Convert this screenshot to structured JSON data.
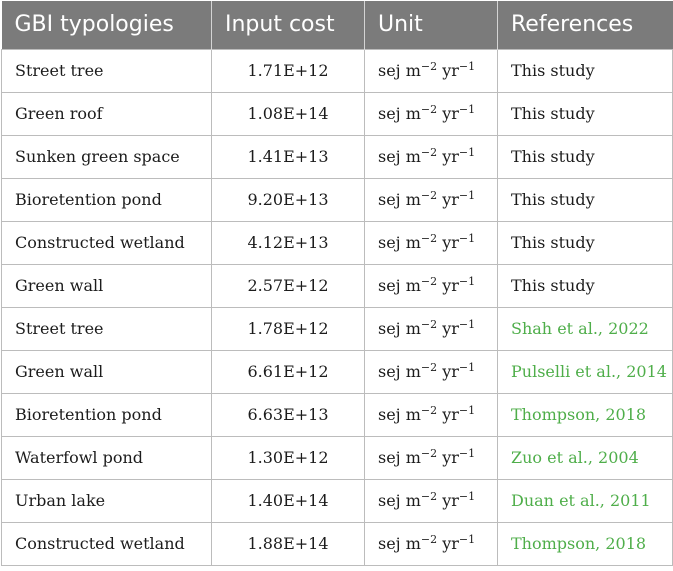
{
  "table": {
    "headers": [
      "GBI typologies",
      "Input cost",
      "Unit",
      "References"
    ],
    "unit": {
      "base": "sej m",
      "exp1": "−2",
      "mid": " yr",
      "exp2": "−1"
    },
    "link_color": "#4fae4a",
    "header_color": "#7b7b7b",
    "rows": [
      {
        "typology": "Street tree",
        "cost": "1.71E+12",
        "ref": "This study",
        "link": false
      },
      {
        "typology": "Green roof",
        "cost": "1.08E+14",
        "ref": "This study",
        "link": false
      },
      {
        "typology": "Sunken green space",
        "cost": "1.41E+13",
        "ref": "This study",
        "link": false
      },
      {
        "typology": "Bioretention pond",
        "cost": "9.20E+13",
        "ref": "This study",
        "link": false
      },
      {
        "typology": "Constructed wetland",
        "cost": "4.12E+13",
        "ref": "This study",
        "link": false
      },
      {
        "typology": "Green wall",
        "cost": "2.57E+12",
        "ref": "This study",
        "link": false
      },
      {
        "typology": "Street tree",
        "cost": "1.78E+12",
        "ref": "Shah et al., 2022",
        "link": true
      },
      {
        "typology": "Green wall",
        "cost": "6.61E+12",
        "ref": "Pulselli et al., 2014",
        "link": true
      },
      {
        "typology": "Bioretention pond",
        "cost": "6.63E+13",
        "ref": "Thompson, 2018",
        "link": true
      },
      {
        "typology": "Waterfowl pond",
        "cost": "1.30E+12",
        "ref": "Zuo et al., 2004",
        "link": true
      },
      {
        "typology": "Urban lake",
        "cost": "1.40E+14",
        "ref": "Duan et al., 2011",
        "link": true
      },
      {
        "typology": "Constructed wetland",
        "cost": "1.88E+14",
        "ref": "Thompson, 2018",
        "link": true
      }
    ]
  }
}
